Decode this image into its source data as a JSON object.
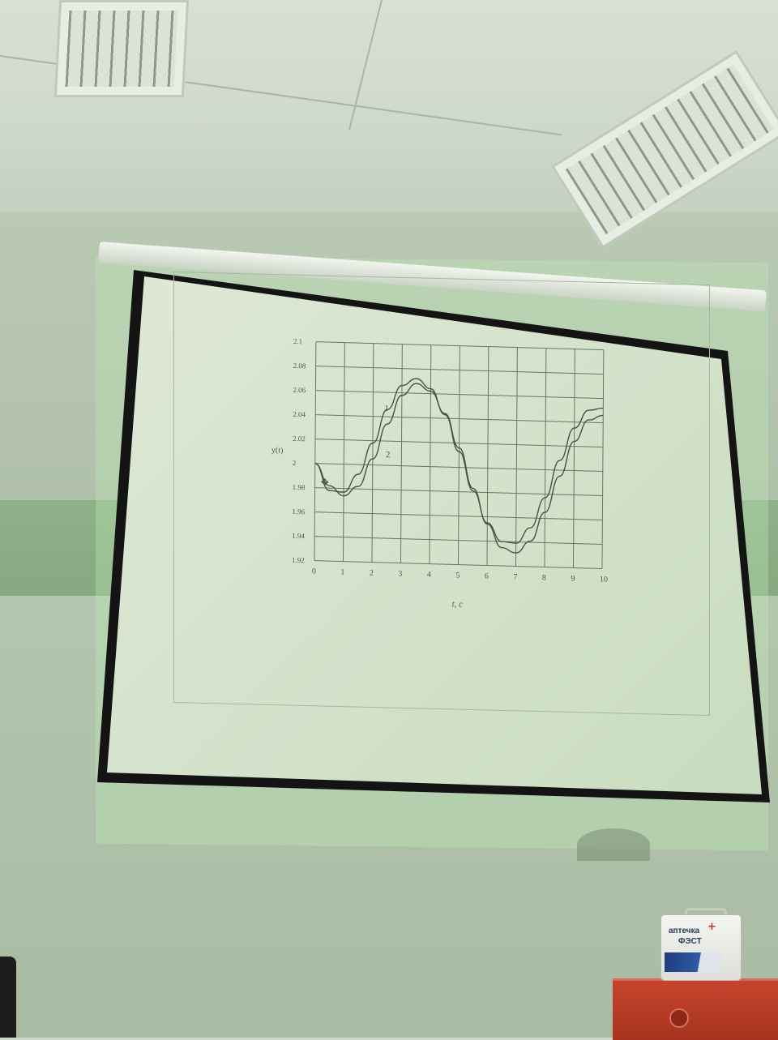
{
  "chart": {
    "y_axis_label": "y(t)",
    "x_axis_label": "t, c",
    "curve_labels": [
      "1",
      "2"
    ]
  },
  "chart_data": {
    "type": "line",
    "xlabel": "t, c",
    "ylabel": "y(t)",
    "xlim": [
      0,
      10
    ],
    "ylim": [
      1.92,
      2.1
    ],
    "x_ticks": [
      "0",
      "1",
      "2",
      "3",
      "4",
      "5",
      "6",
      "7",
      "8",
      "9",
      "10"
    ],
    "y_ticks": [
      "1.92",
      "1.94",
      "1.96",
      "1.98",
      "2",
      "2.02",
      "2.04",
      "2.06",
      "2.08",
      "2.1"
    ],
    "grid": true,
    "series": [
      {
        "name": "1",
        "x": [
          0,
          0.5,
          1,
          1.5,
          2,
          2.5,
          3,
          3.5,
          4,
          4.5,
          5,
          5.5,
          6,
          6.5,
          7,
          7.5,
          8,
          8.5,
          9,
          9.5,
          10
        ],
        "y": [
          2.0,
          1.978,
          1.977,
          1.992,
          2.018,
          2.046,
          2.066,
          2.072,
          2.064,
          2.043,
          2.013,
          1.981,
          1.955,
          1.94,
          1.939,
          1.952,
          1.977,
          2.008,
          2.035,
          2.05,
          2.052
        ]
      },
      {
        "name": "2",
        "x": [
          0,
          0.5,
          1,
          1.5,
          2,
          2.5,
          3,
          3.5,
          4,
          4.5,
          5,
          5.5,
          6,
          6.5,
          7,
          7.5,
          8,
          8.5,
          9,
          9.5,
          10
        ],
        "y": [
          2.0,
          1.982,
          1.974,
          1.982,
          2.005,
          2.034,
          2.058,
          2.068,
          2.062,
          2.044,
          2.016,
          1.983,
          1.954,
          1.935,
          1.931,
          1.941,
          1.965,
          1.995,
          2.024,
          2.042,
          2.046
        ]
      }
    ]
  },
  "first_aid_kit": {
    "label_line1": "аптечка",
    "label_line2": "ФЭСТ"
  }
}
